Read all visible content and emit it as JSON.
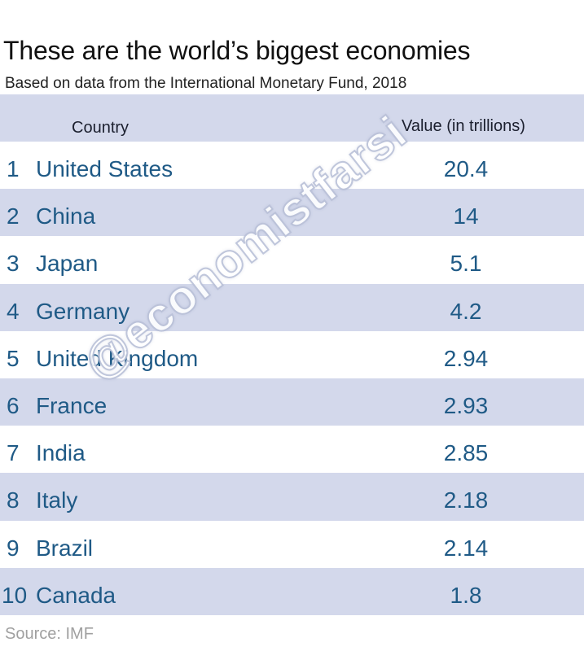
{
  "chart_data": {
    "type": "table",
    "title": "These are the world’s biggest economies",
    "subtitle": "Based on data from the International Monetary Fund, 2018",
    "columns": [
      "Country",
      "Value (in trillions)"
    ],
    "rows": [
      {
        "rank": "1",
        "country": "United States",
        "value": "20.4"
      },
      {
        "rank": "2",
        "country": "China",
        "value": "14"
      },
      {
        "rank": "3",
        "country": "Japan",
        "value": "5.1"
      },
      {
        "rank": "4",
        "country": "Germany",
        "value": "4.2"
      },
      {
        "rank": "5",
        "country": "United Kingdom",
        "value": "2.94"
      },
      {
        "rank": "6",
        "country": "France",
        "value": "2.93"
      },
      {
        "rank": "7",
        "country": "India",
        "value": "2.85"
      },
      {
        "rank": "8",
        "country": "Italy",
        "value": "2.18"
      },
      {
        "rank": "9",
        "country": "Brazil",
        "value": "2.14"
      },
      {
        "rank": "10",
        "country": "Canada",
        "value": "1.8"
      }
    ],
    "source": "Source: IMF"
  },
  "watermark": "@economistfarsi",
  "colors": {
    "band": "#d3d8eb",
    "text_blue": "#1f5a86"
  }
}
